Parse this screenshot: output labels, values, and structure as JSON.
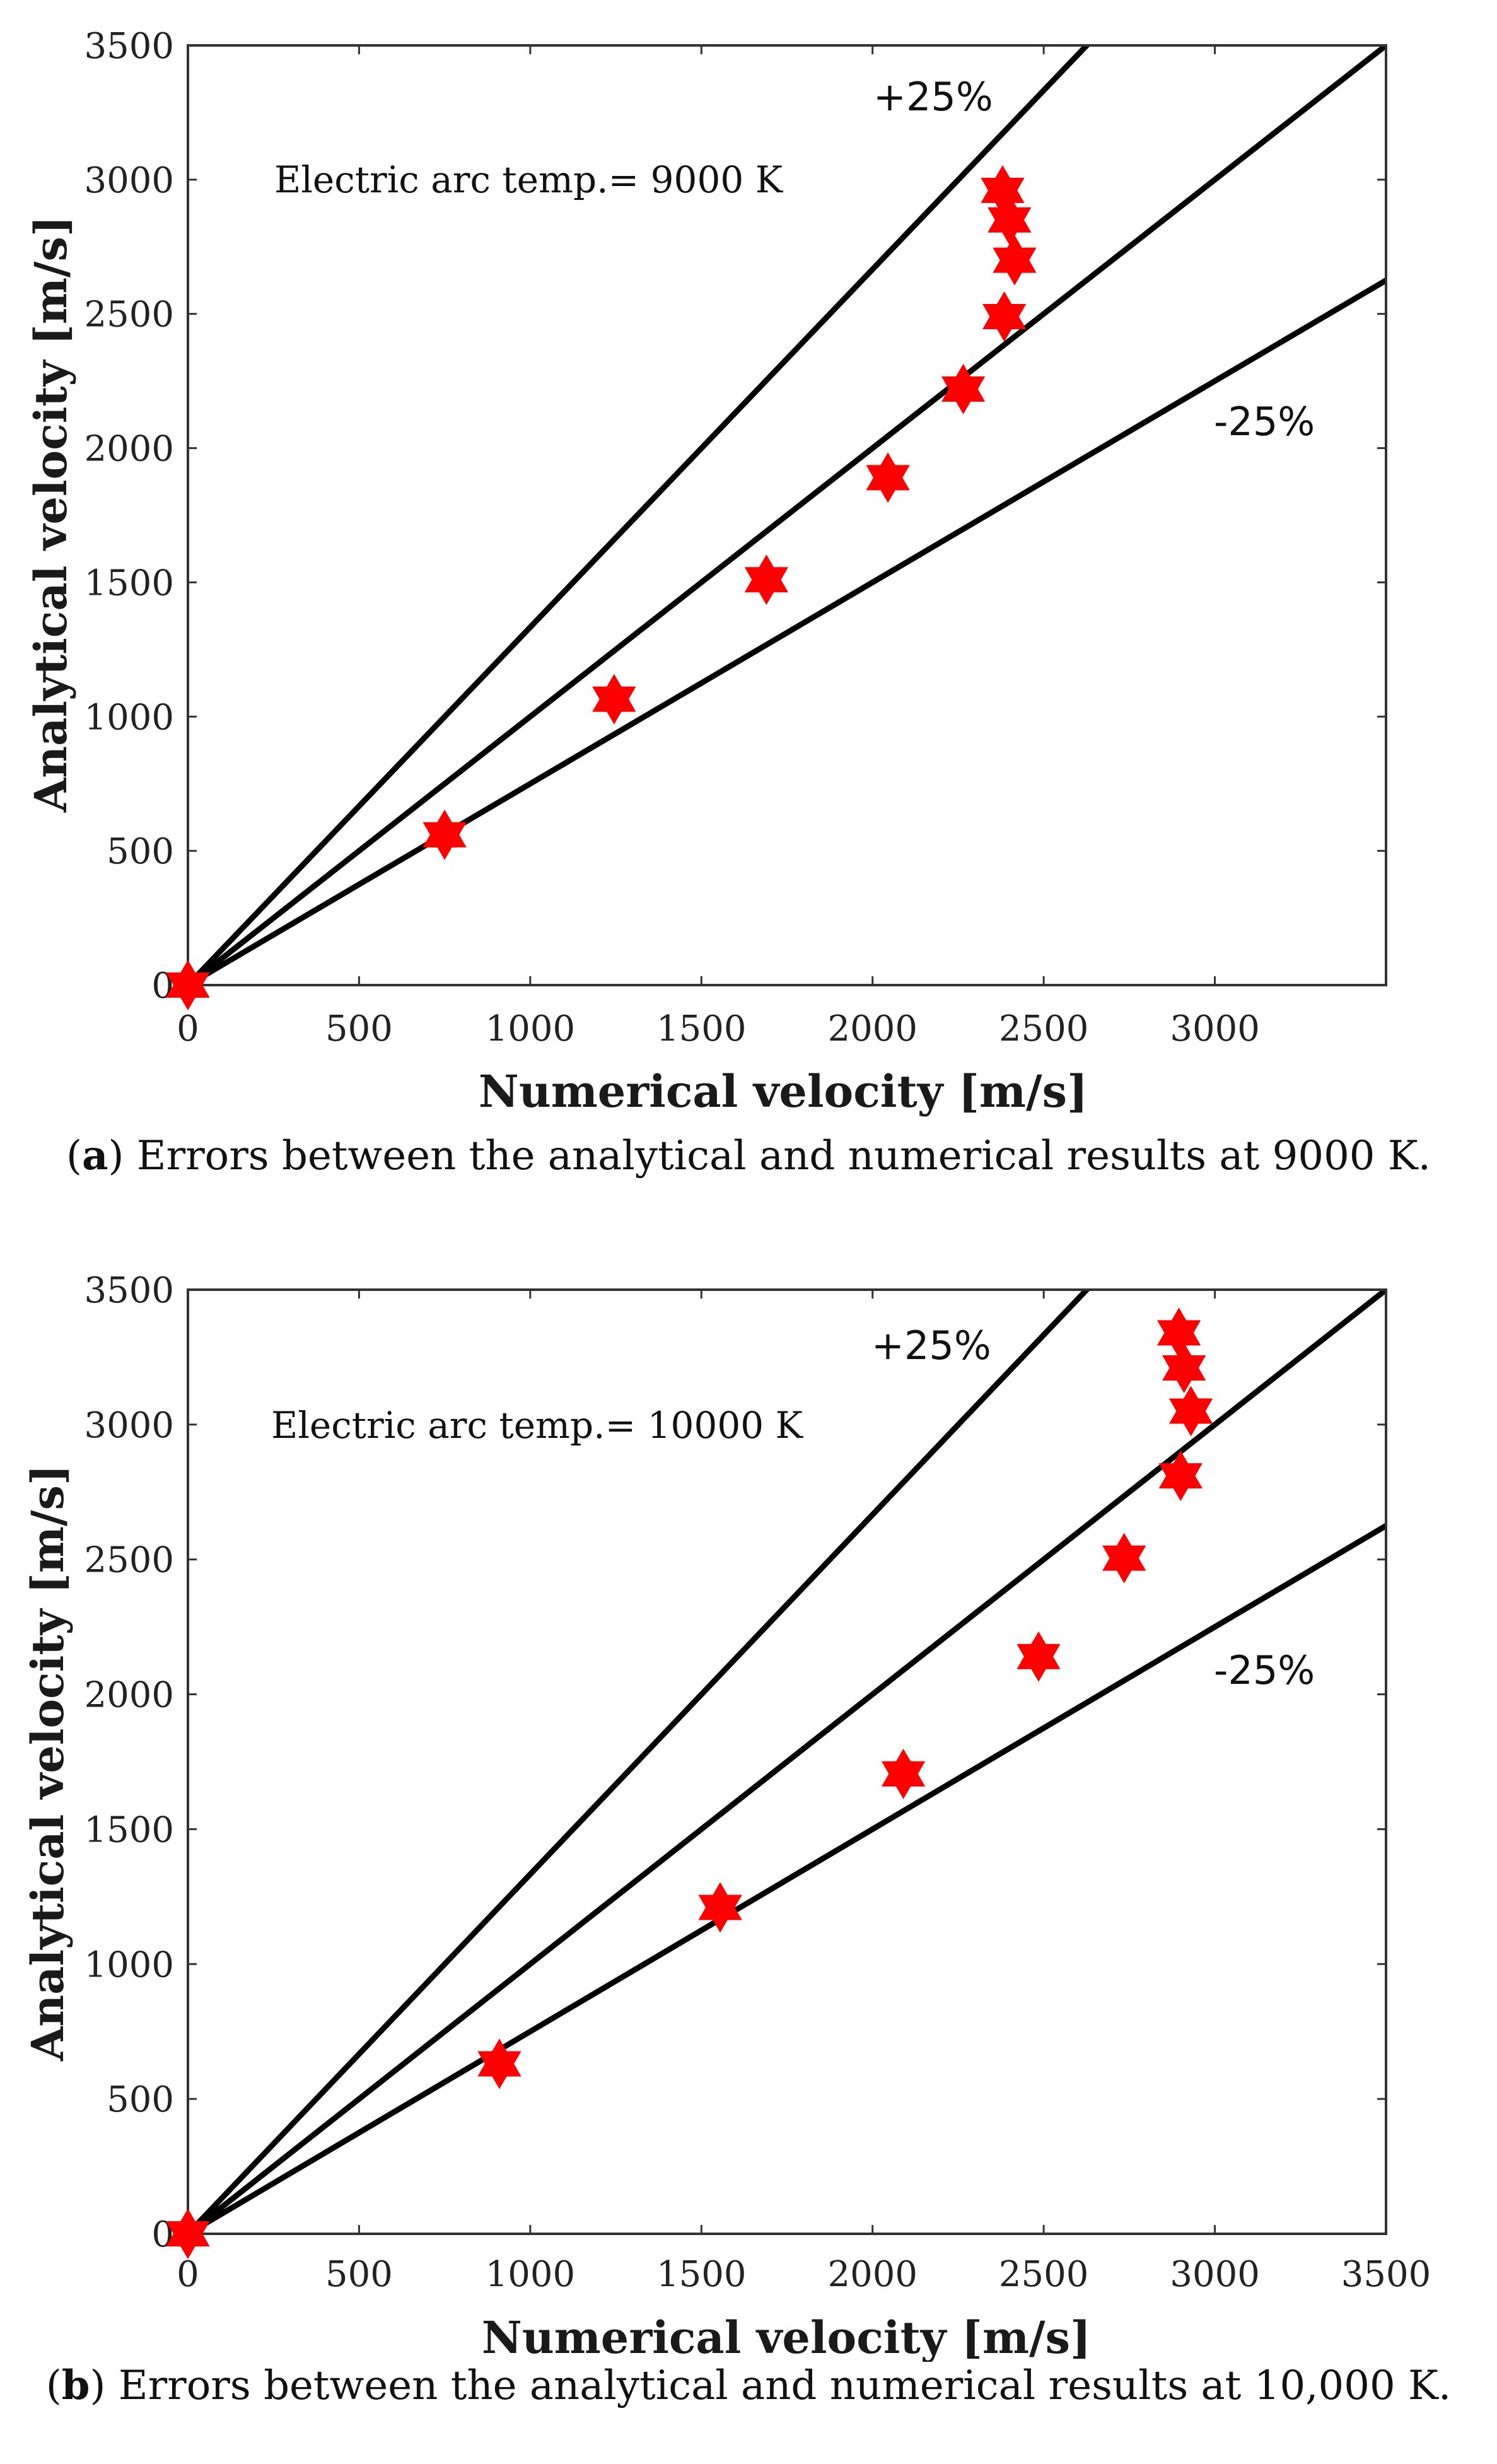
{
  "chart_data": [
    {
      "type": "scatter",
      "id": "a",
      "title": "",
      "annotation": "Electric arc temp.= 9000 K",
      "xlabel": "Numerical velocity [m/s]",
      "ylabel": "Analytical velocity [m/s]",
      "xlim": [
        0,
        3500
      ],
      "ylim": [
        0,
        3500
      ],
      "xticks": [
        "0",
        "500",
        "1000",
        "1500",
        "2000",
        "2500",
        "3000"
      ],
      "yticks": [
        "0",
        "500",
        "1000",
        "1500",
        "2000",
        "2500",
        "3000",
        "3500"
      ],
      "reference_lines": [
        {
          "label": "+25%",
          "slope": 1.333
        },
        {
          "label": "",
          "slope": 1.0
        },
        {
          "label": "-25%",
          "slope": 0.75
        }
      ],
      "points": [
        {
          "x": 0,
          "y": 0
        },
        {
          "x": 750,
          "y": 560
        },
        {
          "x": 1245,
          "y": 1065
        },
        {
          "x": 1690,
          "y": 1510
        },
        {
          "x": 2045,
          "y": 1890
        },
        {
          "x": 2265,
          "y": 2220
        },
        {
          "x": 2385,
          "y": 2490
        },
        {
          "x": 2415,
          "y": 2700
        },
        {
          "x": 2400,
          "y": 2850
        },
        {
          "x": 2380,
          "y": 2960
        }
      ],
      "caption_letter": "a",
      "caption_text": ") Errors between the analytical and numerical results at 9000 K."
    },
    {
      "type": "scatter",
      "id": "b",
      "title": "",
      "annotation": "Electric arc temp.= 10000 K",
      "xlabel": "Numerical velocity [m/s]",
      "ylabel": "Analytical velocity [m/s]",
      "xlim": [
        0,
        3500
      ],
      "ylim": [
        0,
        3500
      ],
      "xticks": [
        "0",
        "500",
        "1000",
        "1500",
        "2000",
        "2500",
        "3000",
        "3500"
      ],
      "yticks": [
        "0",
        "500",
        "1000",
        "1500",
        "2000",
        "2500",
        "3000",
        "3500"
      ],
      "reference_lines": [
        {
          "label": "+25%",
          "slope": 1.333
        },
        {
          "label": "",
          "slope": 1.0
        },
        {
          "label": "-25%",
          "slope": 0.75
        }
      ],
      "points": [
        {
          "x": 0,
          "y": 0
        },
        {
          "x": 910,
          "y": 630
        },
        {
          "x": 1555,
          "y": 1210
        },
        {
          "x": 2090,
          "y": 1705
        },
        {
          "x": 2485,
          "y": 2140
        },
        {
          "x": 2735,
          "y": 2505
        },
        {
          "x": 2900,
          "y": 2810
        },
        {
          "x": 2930,
          "y": 3050
        },
        {
          "x": 2910,
          "y": 3210
        },
        {
          "x": 2895,
          "y": 3340
        }
      ],
      "caption_letter": "b",
      "caption_text": ") Errors between the analytical and numerical results at 10,000 K."
    }
  ],
  "colors": {
    "marker": "#ff0000",
    "line": "#000000",
    "axis": "#333333"
  }
}
